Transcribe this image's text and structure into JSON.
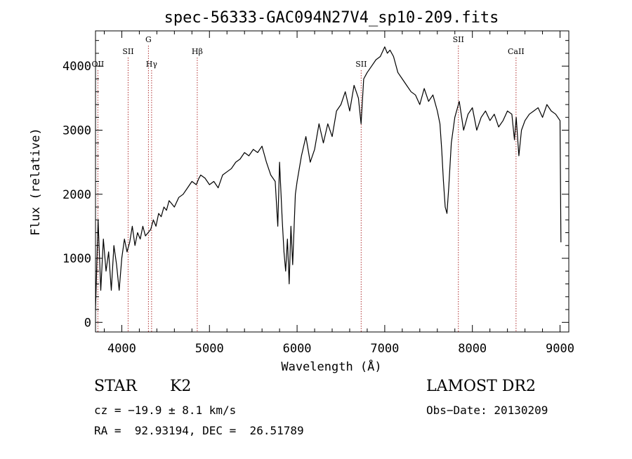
{
  "chart_data": {
    "type": "line",
    "title": "spec-56333-GAC094N27V4_sp10-209.fits",
    "xlabel": "Wavelength (Å)",
    "ylabel": "Flux (relative)",
    "xlim": [
      3700,
      9100
    ],
    "ylim": [
      -150,
      4550
    ],
    "xticks": [
      4000,
      5000,
      6000,
      7000,
      8000,
      9000
    ],
    "yticks": [
      0,
      1000,
      2000,
      3000,
      4000
    ],
    "line_color": "#000000",
    "marker_color": "#b03030",
    "spectral_lines": [
      {
        "label": "OII",
        "wavelength": 3727,
        "level": "low"
      },
      {
        "label": "SII",
        "wavelength": 4072,
        "level": "mid"
      },
      {
        "label": "G",
        "wavelength": 4304,
        "level": "high"
      },
      {
        "label": "Hγ",
        "wavelength": 4340,
        "level": "low"
      },
      {
        "label": "Hβ",
        "wavelength": 4861,
        "level": "mid"
      },
      {
        "label": "SII",
        "wavelength": 6731,
        "level": "low"
      },
      {
        "label": "SII",
        "wavelength": 7840,
        "level": "high"
      },
      {
        "label": "CaII",
        "wavelength": 8498,
        "level": "mid"
      }
    ],
    "series": [
      {
        "x": [
          3700,
          3730,
          3760,
          3790,
          3820,
          3850,
          3880,
          3910,
          3940,
          3970,
          4000,
          4030,
          4060,
          4090,
          4120,
          4150,
          4180,
          4210,
          4240,
          4270,
          4300,
          4330,
          4360,
          4390,
          4420,
          4450,
          4480,
          4510,
          4540,
          4570,
          4600,
          4650,
          4700,
          4750,
          4800,
          4850,
          4880,
          4900,
          4950,
          5000,
          5050,
          5100,
          5150,
          5200,
          5250,
          5300,
          5350,
          5400,
          5450,
          5500,
          5550,
          5600,
          5650,
          5700,
          5750,
          5780,
          5800,
          5830,
          5850,
          5870,
          5890,
          5910,
          5930,
          5950,
          5980,
          6000,
          6050,
          6100,
          6150,
          6200,
          6250,
          6300,
          6350,
          6400,
          6450,
          6500,
          6550,
          6600,
          6650,
          6700,
          6730,
          6760,
          6800,
          6850,
          6900,
          6950,
          7000,
          7030,
          7060,
          7100,
          7150,
          7200,
          7250,
          7300,
          7350,
          7400,
          7450,
          7500,
          7550,
          7600,
          7630,
          7650,
          7670,
          7690,
          7710,
          7730,
          7760,
          7800,
          7850,
          7900,
          7950,
          8000,
          8050,
          8100,
          8150,
          8200,
          8250,
          8300,
          8350,
          8400,
          8450,
          8480,
          8500,
          8530,
          8560,
          8600,
          8650,
          8700,
          8750,
          8800,
          8850,
          8900,
          8950,
          9000,
          9010
        ],
        "y": [
          200,
          1600,
          500,
          1300,
          800,
          1100,
          500,
          1200,
          900,
          500,
          1000,
          1300,
          1100,
          1250,
          1500,
          1200,
          1400,
          1300,
          1500,
          1350,
          1400,
          1450,
          1600,
          1500,
          1700,
          1650,
          1800,
          1750,
          1900,
          1850,
          1800,
          1950,
          2000,
          2100,
          2200,
          2150,
          2250,
          2300,
          2250,
          2150,
          2200,
          2100,
          2300,
          2350,
          2400,
          2500,
          2550,
          2650,
          2600,
          2700,
          2650,
          2750,
          2500,
          2300,
          2200,
          1500,
          2500,
          1600,
          1100,
          800,
          1300,
          600,
          1500,
          900,
          2000,
          2200,
          2600,
          2900,
          2500,
          2700,
          3100,
          2800,
          3100,
          2900,
          3300,
          3400,
          3600,
          3300,
          3700,
          3500,
          3100,
          3800,
          3900,
          4000,
          4100,
          4150,
          4300,
          4200,
          4250,
          4150,
          3900,
          3800,
          3700,
          3600,
          3550,
          3400,
          3650,
          3450,
          3550,
          3300,
          3100,
          2700,
          2200,
          1800,
          1700,
          2100,
          2800,
          3200,
          3450,
          3000,
          3250,
          3350,
          3000,
          3200,
          3300,
          3150,
          3250,
          3050,
          3150,
          3300,
          3250,
          2850,
          3200,
          2600,
          3000,
          3150,
          3250,
          3300,
          3350,
          3200,
          3400,
          3300,
          3250,
          3150,
          1250
        ]
      }
    ]
  },
  "info": {
    "object_class": "STAR",
    "subclass": "K2",
    "survey": "LAMOST DR2",
    "cz": "cz = −19.9 ± 8.1 km/s",
    "obs_date": "Obs−Date: 20130209",
    "coords": "RA =  92.93194, DEC =  26.51789"
  }
}
